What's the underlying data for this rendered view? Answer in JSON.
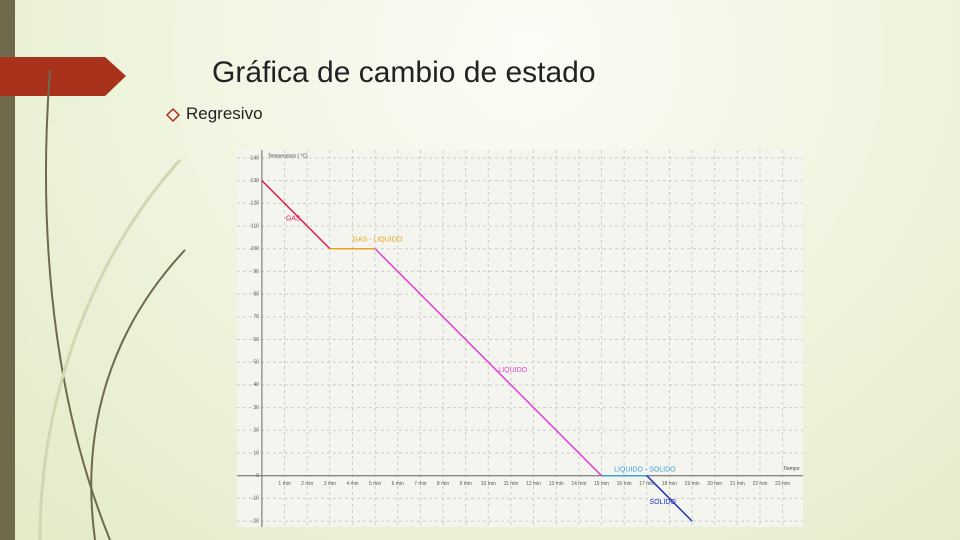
{
  "slide": {
    "title": "Gráfica de cambio de estado",
    "bullet": "Regresivo"
  },
  "chart_data": {
    "type": "line",
    "y_label": "Temperatura ( °C)",
    "x_label": "Tiempo",
    "xlim": [
      -1.1,
      23.9
    ],
    "ylim": [
      -22.6,
      143.5
    ],
    "xticks": [
      {
        "value": 1,
        "label": "1 min"
      },
      {
        "value": 2,
        "label": "2 min"
      },
      {
        "value": 3,
        "label": "3 min"
      },
      {
        "value": 4,
        "label": "4 min"
      },
      {
        "value": 5,
        "label": "5 min"
      },
      {
        "value": 6,
        "label": "6 min"
      },
      {
        "value": 7,
        "label": "7 min"
      },
      {
        "value": 8,
        "label": "8 min"
      },
      {
        "value": 9,
        "label": "9 min"
      },
      {
        "value": 10,
        "label": "10 min"
      },
      {
        "value": 11,
        "label": "11 min"
      },
      {
        "value": 12,
        "label": "12 min"
      },
      {
        "value": 13,
        "label": "13 min"
      },
      {
        "value": 14,
        "label": "14 min"
      },
      {
        "value": 15,
        "label": "15 min"
      },
      {
        "value": 16,
        "label": "16 min"
      },
      {
        "value": 17,
        "label": "17 min"
      },
      {
        "value": 18,
        "label": "18 min"
      },
      {
        "value": 19,
        "label": "19 min"
      },
      {
        "value": 20,
        "label": "20 min"
      },
      {
        "value": 21,
        "label": "21 min"
      },
      {
        "value": 22,
        "label": "22 min"
      },
      {
        "value": 23,
        "label": "23 min"
      }
    ],
    "yticks": [
      -20,
      -10,
      0,
      10,
      20,
      30,
      40,
      50,
      60,
      70,
      80,
      90,
      100,
      110,
      120,
      130,
      140
    ],
    "grid": true,
    "series": [
      {
        "name": "GAS",
        "color": "#e0194a",
        "x": [
          0,
          3
        ],
        "values": [
          130,
          100
        ]
      },
      {
        "name": "GAS - LIQUIDO",
        "color": "#f0a020",
        "x": [
          3,
          5
        ],
        "values": [
          100,
          100
        ]
      },
      {
        "name": "LIQUIDO",
        "color": "#e040d0",
        "x": [
          5,
          15
        ],
        "values": [
          100,
          0
        ]
      },
      {
        "name": "LIQUIDO - SOLIDO",
        "color": "#3aa0e0",
        "x": [
          15,
          17
        ],
        "values": [
          0,
          0
        ]
      },
      {
        "name": "SOLIDO",
        "color": "#2030c0",
        "x": [
          17,
          19
        ],
        "values": [
          0,
          -20
        ]
      }
    ]
  }
}
